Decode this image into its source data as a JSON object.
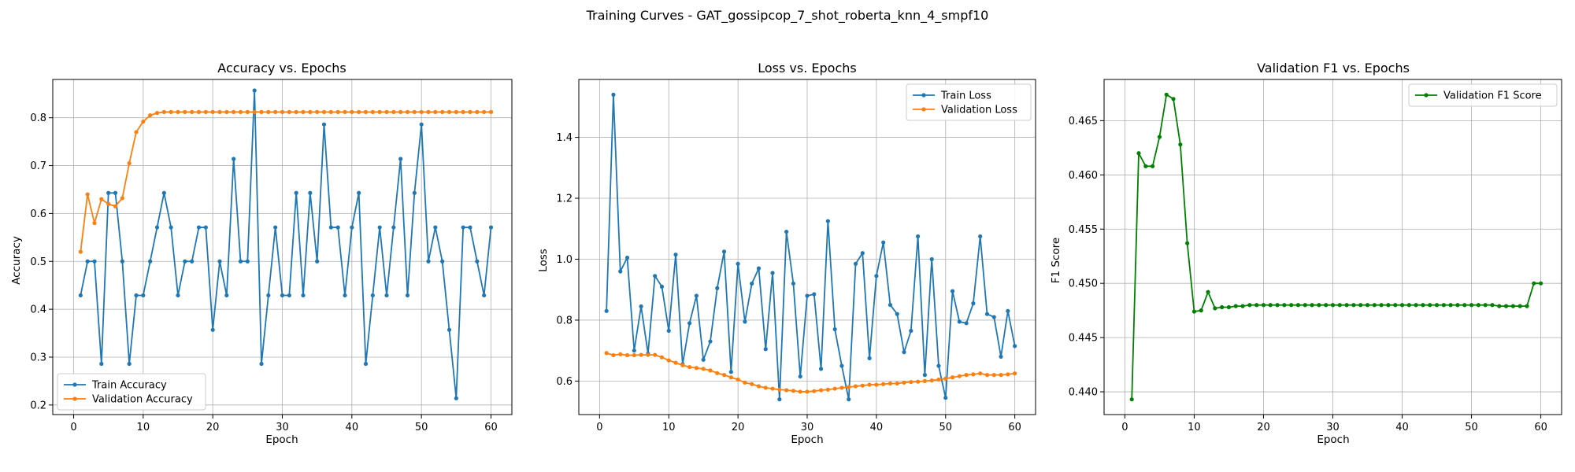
{
  "figure": {
    "suptitle": "Training Curves - GAT_gossipcop_7_shot_roberta_knn_4_smpf10"
  },
  "chart_data": [
    {
      "type": "line",
      "title": "Accuracy vs. Epochs",
      "xlabel": "Epoch",
      "ylabel": "Accuracy",
      "xlim": [
        -3,
        63
      ],
      "ylim": [
        0.18,
        0.88
      ],
      "xticks": [
        "0",
        "10",
        "20",
        "30",
        "40",
        "50",
        "60"
      ],
      "yticks": [
        "0.2",
        "0.3",
        "0.4",
        "0.5",
        "0.6",
        "0.7",
        "0.8"
      ],
      "grid": true,
      "legend_position": "lower-left",
      "x": [
        1,
        2,
        3,
        4,
        5,
        6,
        7,
        8,
        9,
        10,
        11,
        12,
        13,
        14,
        15,
        16,
        17,
        18,
        19,
        20,
        21,
        22,
        23,
        24,
        25,
        26,
        27,
        28,
        29,
        30,
        31,
        32,
        33,
        34,
        35,
        36,
        37,
        38,
        39,
        40,
        41,
        42,
        43,
        44,
        45,
        46,
        47,
        48,
        49,
        50,
        51,
        52,
        53,
        54,
        55,
        56,
        57,
        58,
        59,
        60
      ],
      "series": [
        {
          "name": "Train Accuracy",
          "color": "#1f77b4",
          "values": [
            0.429,
            0.5,
            0.5,
            0.286,
            0.643,
            0.643,
            0.5,
            0.286,
            0.429,
            0.429,
            0.5,
            0.571,
            0.643,
            0.571,
            0.429,
            0.5,
            0.5,
            0.571,
            0.571,
            0.357,
            0.5,
            0.429,
            0.714,
            0.5,
            0.5,
            0.857,
            0.286,
            0.429,
            0.571,
            0.429,
            0.429,
            0.643,
            0.429,
            0.643,
            0.5,
            0.786,
            0.571,
            0.571,
            0.429,
            0.571,
            0.643,
            0.286,
            0.429,
            0.571,
            0.429,
            0.571,
            0.714,
            0.429,
            0.643,
            0.786,
            0.5,
            0.571,
            0.5,
            0.357,
            0.214,
            0.571,
            0.571,
            0.5,
            0.429,
            0.571
          ]
        },
        {
          "name": "Validation Accuracy",
          "color": "#ff7f0e",
          "values": [
            0.52,
            0.64,
            0.58,
            0.63,
            0.62,
            0.615,
            0.632,
            0.705,
            0.77,
            0.792,
            0.805,
            0.81,
            0.812,
            0.812,
            0.812,
            0.812,
            0.812,
            0.812,
            0.812,
            0.812,
            0.812,
            0.812,
            0.812,
            0.812,
            0.812,
            0.812,
            0.812,
            0.812,
            0.812,
            0.812,
            0.812,
            0.812,
            0.812,
            0.812,
            0.812,
            0.812,
            0.812,
            0.812,
            0.812,
            0.812,
            0.812,
            0.812,
            0.812,
            0.812,
            0.812,
            0.812,
            0.812,
            0.812,
            0.812,
            0.812,
            0.812,
            0.812,
            0.812,
            0.812,
            0.812,
            0.812,
            0.812,
            0.812,
            0.812,
            0.812
          ]
        }
      ]
    },
    {
      "type": "line",
      "title": "Loss vs. Epochs",
      "xlabel": "Epoch",
      "ylabel": "Loss",
      "xlim": [
        -3,
        63
      ],
      "ylim": [
        0.49,
        1.59
      ],
      "xticks": [
        "0",
        "10",
        "20",
        "30",
        "40",
        "50",
        "60"
      ],
      "yticks": [
        "0.6",
        "0.8",
        "1.0",
        "1.2",
        "1.4"
      ],
      "grid": true,
      "legend_position": "top-right",
      "x": [
        1,
        2,
        3,
        4,
        5,
        6,
        7,
        8,
        9,
        10,
        11,
        12,
        13,
        14,
        15,
        16,
        17,
        18,
        19,
        20,
        21,
        22,
        23,
        24,
        25,
        26,
        27,
        28,
        29,
        30,
        31,
        32,
        33,
        34,
        35,
        36,
        37,
        38,
        39,
        40,
        41,
        42,
        43,
        44,
        45,
        46,
        47,
        48,
        49,
        50,
        51,
        52,
        53,
        54,
        55,
        56,
        57,
        58,
        59,
        60
      ],
      "series": [
        {
          "name": "Train Loss",
          "color": "#1f77b4",
          "values": [
            0.83,
            1.54,
            0.96,
            1.005,
            0.7,
            0.845,
            0.69,
            0.945,
            0.91,
            0.765,
            1.015,
            0.655,
            0.79,
            0.88,
            0.67,
            0.73,
            0.905,
            1.025,
            0.63,
            0.985,
            0.795,
            0.92,
            0.97,
            0.705,
            0.955,
            0.54,
            1.09,
            0.92,
            0.615,
            0.88,
            0.885,
            0.64,
            1.125,
            0.77,
            0.65,
            0.54,
            0.985,
            1.02,
            0.675,
            0.945,
            1.055,
            0.85,
            0.82,
            0.695,
            0.765,
            1.075,
            0.62,
            1.0,
            0.65,
            0.545,
            0.895,
            0.795,
            0.79,
            0.855,
            1.075,
            0.82,
            0.81,
            0.68,
            0.83,
            0.715
          ]
        },
        {
          "name": "Validation Loss",
          "color": "#ff7f0e",
          "values": [
            0.692,
            0.685,
            0.688,
            0.685,
            0.685,
            0.686,
            0.686,
            0.686,
            0.678,
            0.668,
            0.66,
            0.652,
            0.646,
            0.643,
            0.64,
            0.635,
            0.626,
            0.62,
            0.612,
            0.605,
            0.595,
            0.59,
            0.583,
            0.578,
            0.575,
            0.572,
            0.57,
            0.568,
            0.565,
            0.565,
            0.567,
            0.57,
            0.572,
            0.575,
            0.578,
            0.58,
            0.583,
            0.585,
            0.588,
            0.588,
            0.59,
            0.592,
            0.592,
            0.595,
            0.597,
            0.598,
            0.6,
            0.602,
            0.605,
            0.608,
            0.612,
            0.616,
            0.62,
            0.622,
            0.625,
            0.62,
            0.62,
            0.62,
            0.622,
            0.625
          ]
        }
      ]
    },
    {
      "type": "line",
      "title": "Validation F1 vs. Epochs",
      "xlabel": "Epoch",
      "ylabel": "F1 Score",
      "xlim": [
        -3,
        63
      ],
      "ylim": [
        0.4379,
        0.4688
      ],
      "xticks": [
        "0",
        "10",
        "20",
        "30",
        "40",
        "50",
        "60"
      ],
      "yticks": [
        "0.440",
        "0.445",
        "0.450",
        "0.455",
        "0.460",
        "0.465"
      ],
      "grid": true,
      "legend_position": "top-right",
      "x": [
        1,
        2,
        3,
        4,
        5,
        6,
        7,
        8,
        9,
        10,
        11,
        12,
        13,
        14,
        15,
        16,
        17,
        18,
        19,
        20,
        21,
        22,
        23,
        24,
        25,
        26,
        27,
        28,
        29,
        30,
        31,
        32,
        33,
        34,
        35,
        36,
        37,
        38,
        39,
        40,
        41,
        42,
        43,
        44,
        45,
        46,
        47,
        48,
        49,
        50,
        51,
        52,
        53,
        54,
        55,
        56,
        57,
        58,
        59,
        60
      ],
      "series": [
        {
          "name": "Validation F1 Score",
          "color": "#008000",
          "values": [
            0.4393,
            0.462,
            0.4608,
            0.4608,
            0.4635,
            0.4674,
            0.467,
            0.4628,
            0.4537,
            0.4474,
            0.4475,
            0.4492,
            0.4477,
            0.4478,
            0.4478,
            0.4479,
            0.4479,
            0.448,
            0.448,
            0.448,
            0.448,
            0.448,
            0.448,
            0.448,
            0.448,
            0.448,
            0.448,
            0.448,
            0.448,
            0.448,
            0.448,
            0.448,
            0.448,
            0.448,
            0.448,
            0.448,
            0.448,
            0.448,
            0.448,
            0.448,
            0.448,
            0.448,
            0.448,
            0.448,
            0.448,
            0.448,
            0.448,
            0.448,
            0.448,
            0.448,
            0.448,
            0.448,
            0.448,
            0.4479,
            0.4479,
            0.4479,
            0.4479,
            0.4479,
            0.45,
            0.45
          ]
        }
      ]
    }
  ]
}
